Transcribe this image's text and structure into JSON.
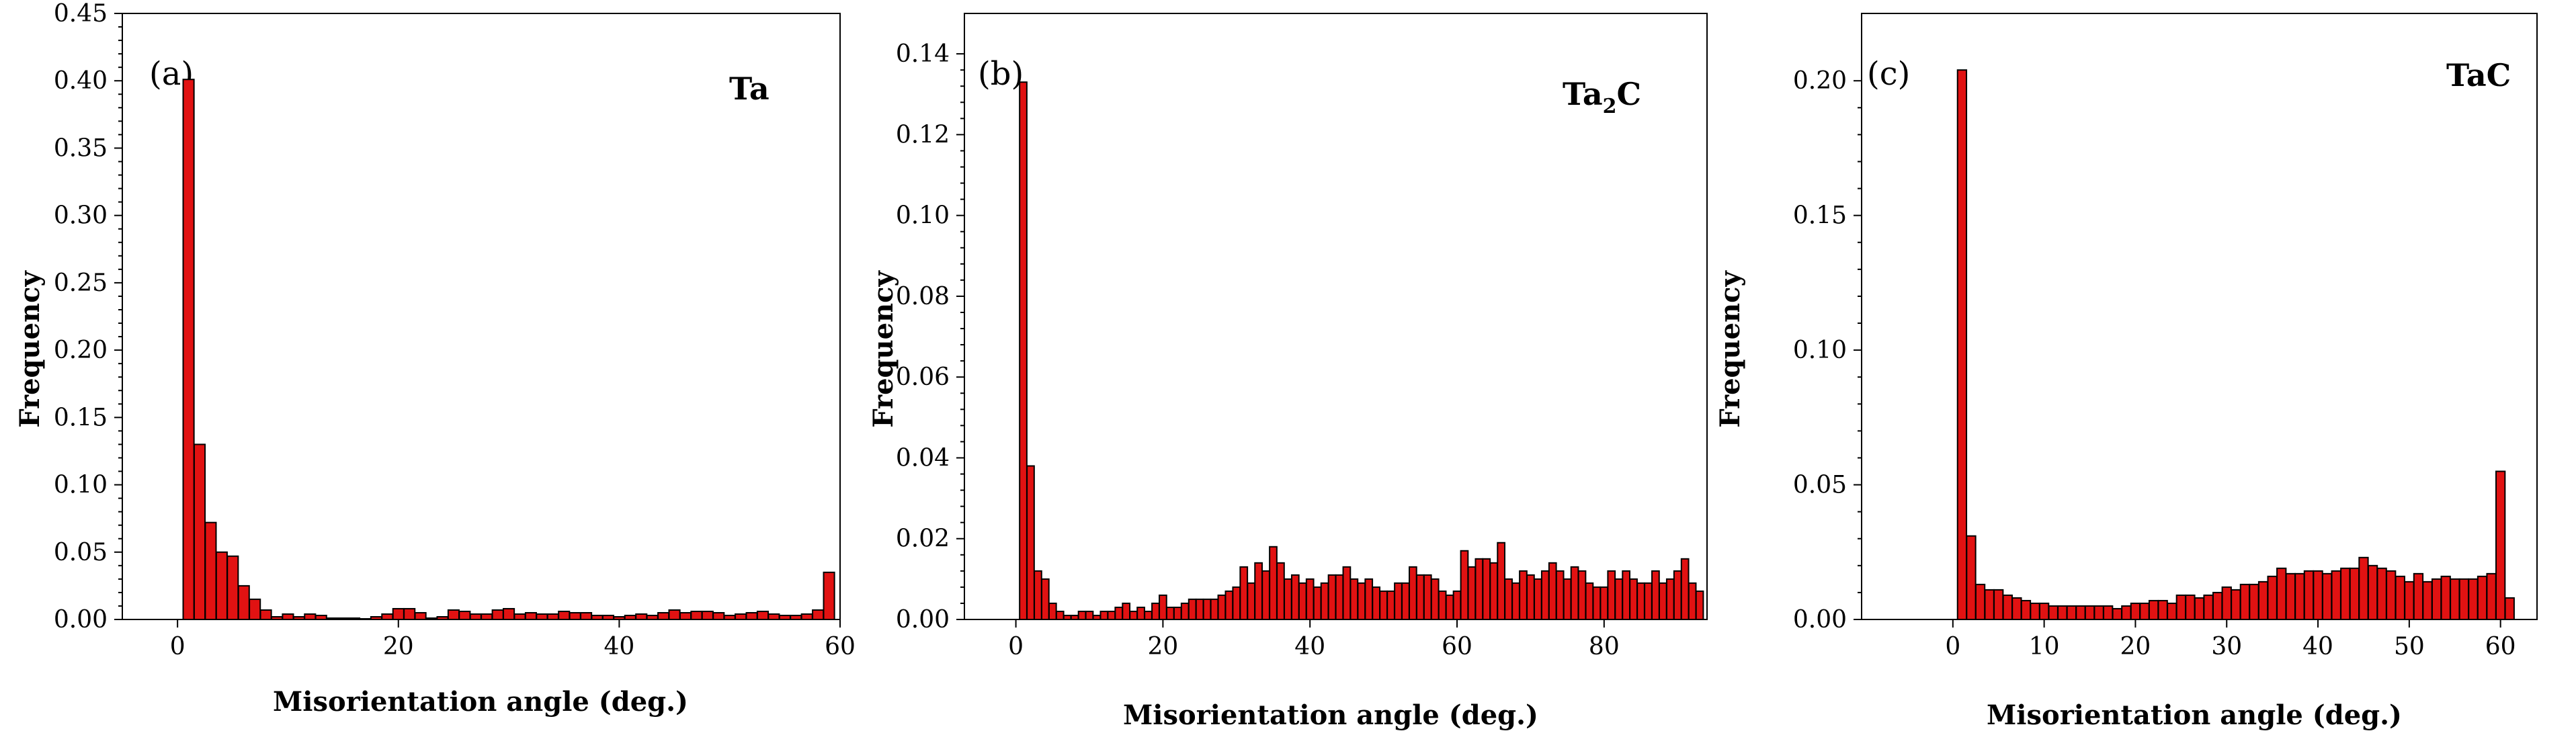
{
  "colors": {
    "bar_fill": "#e11212",
    "bar_edge": "#000000",
    "axis": "#000000"
  },
  "chart_data": [
    {
      "type": "bar",
      "panel_label": "(a)",
      "phase": {
        "main": "Ta",
        "sub": ""
      },
      "xlabel": "Misorientation angle (deg.)",
      "ylabel": "Frequency",
      "xlim": [
        -5,
        60
      ],
      "ylim": [
        0,
        0.45
      ],
      "bin_width": 1,
      "x_ticks": [
        0,
        20,
        40,
        60
      ],
      "y_ticks": [
        0.0,
        0.05,
        0.1,
        0.15,
        0.2,
        0.25,
        0.3,
        0.35,
        0.4,
        0.45
      ],
      "x_tick_labels": [
        "0",
        "20",
        "40",
        "60"
      ],
      "y_tick_labels": [
        "0.00",
        "0.05",
        "0.10",
        "0.15",
        "0.20",
        "0.25",
        "0.30",
        "0.35",
        "0.40",
        "0.45"
      ],
      "x": [
        1,
        2,
        3,
        4,
        5,
        6,
        7,
        8,
        9,
        10,
        11,
        12,
        13,
        14,
        15,
        16,
        17,
        18,
        19,
        20,
        21,
        22,
        23,
        24,
        25,
        26,
        27,
        28,
        29,
        30,
        31,
        32,
        33,
        34,
        35,
        36,
        37,
        38,
        39,
        40,
        41,
        42,
        43,
        44,
        45,
        46,
        47,
        48,
        49,
        50,
        51,
        52,
        53,
        54,
        55,
        56,
        57,
        58,
        59
      ],
      "values": [
        0.401,
        0.13,
        0.072,
        0.05,
        0.047,
        0.025,
        0.015,
        0.007,
        0.002,
        0.004,
        0.002,
        0.004,
        0.003,
        0.001,
        0.001,
        0.001,
        0.0005,
        0.002,
        0.004,
        0.008,
        0.008,
        0.005,
        0.001,
        0.002,
        0.007,
        0.006,
        0.004,
        0.004,
        0.007,
        0.008,
        0.004,
        0.005,
        0.004,
        0.004,
        0.006,
        0.005,
        0.005,
        0.003,
        0.003,
        0.002,
        0.003,
        0.004,
        0.003,
        0.005,
        0.007,
        0.005,
        0.006,
        0.006,
        0.005,
        0.003,
        0.004,
        0.005,
        0.006,
        0.004,
        0.003,
        0.003,
        0.004,
        0.007,
        0.035
      ]
    },
    {
      "type": "bar",
      "panel_label": "(b)",
      "phase": {
        "main": "Ta",
        "sub": "2",
        "main2": "C"
      },
      "xlabel": "Misorientation angle (deg.)",
      "ylabel": "Frequency",
      "xlim": [
        -7,
        94
      ],
      "ylim": [
        0,
        0.15
      ],
      "bin_width": 1,
      "x_ticks": [
        0,
        20,
        40,
        60,
        80
      ],
      "y_ticks": [
        0.0,
        0.02,
        0.04,
        0.06,
        0.08,
        0.1,
        0.12,
        0.14
      ],
      "x_tick_labels": [
        "0",
        "20",
        "40",
        "60",
        "80"
      ],
      "y_tick_labels": [
        "0.00",
        "0.02",
        "0.04",
        "0.06",
        "0.08",
        "0.10",
        "0.12",
        "0.14"
      ],
      "x": [
        1,
        2,
        3,
        4,
        5,
        6,
        7,
        8,
        9,
        10,
        11,
        12,
        13,
        14,
        15,
        16,
        17,
        18,
        19,
        20,
        21,
        22,
        23,
        24,
        25,
        26,
        27,
        28,
        29,
        30,
        31,
        32,
        33,
        34,
        35,
        36,
        37,
        38,
        39,
        40,
        41,
        42,
        43,
        44,
        45,
        46,
        47,
        48,
        49,
        50,
        51,
        52,
        53,
        54,
        55,
        56,
        57,
        58,
        59,
        60,
        61,
        62,
        63,
        64,
        65,
        66,
        67,
        68,
        69,
        70,
        71,
        72,
        73,
        74,
        75,
        76,
        77,
        78,
        79,
        80,
        81,
        82,
        83,
        84,
        85,
        86,
        87,
        88,
        89,
        90,
        91,
        92,
        93
      ],
      "values": [
        0.133,
        0.038,
        0.012,
        0.01,
        0.004,
        0.002,
        0.001,
        0.001,
        0.002,
        0.002,
        0.001,
        0.002,
        0.002,
        0.003,
        0.004,
        0.002,
        0.003,
        0.002,
        0.004,
        0.006,
        0.003,
        0.003,
        0.004,
        0.005,
        0.005,
        0.005,
        0.005,
        0.006,
        0.007,
        0.008,
        0.013,
        0.009,
        0.014,
        0.012,
        0.018,
        0.014,
        0.01,
        0.011,
        0.009,
        0.01,
        0.008,
        0.009,
        0.011,
        0.011,
        0.013,
        0.01,
        0.009,
        0.01,
        0.008,
        0.007,
        0.007,
        0.009,
        0.009,
        0.013,
        0.011,
        0.011,
        0.01,
        0.007,
        0.006,
        0.007,
        0.017,
        0.013,
        0.015,
        0.015,
        0.014,
        0.019,
        0.01,
        0.009,
        0.012,
        0.011,
        0.01,
        0.012,
        0.014,
        0.012,
        0.01,
        0.013,
        0.012,
        0.009,
        0.008,
        0.008,
        0.012,
        0.01,
        0.012,
        0.01,
        0.009,
        0.009,
        0.012,
        0.009,
        0.01,
        0.012,
        0.015,
        0.009,
        0.007
      ]
    },
    {
      "type": "bar",
      "panel_label": "(c)",
      "phase": {
        "main": "TaC",
        "sub": ""
      },
      "xlabel": "Misorientation angle (deg.)",
      "ylabel": "Frequency",
      "xlim": [
        -10,
        64
      ],
      "ylim": [
        0,
        0.225
      ],
      "bin_width": 1,
      "x_ticks": [
        0,
        10,
        20,
        30,
        40,
        50,
        60
      ],
      "y_ticks": [
        0.0,
        0.05,
        0.1,
        0.15,
        0.2
      ],
      "x_tick_labels": [
        "0",
        "10",
        "20",
        "30",
        "40",
        "50",
        "60"
      ],
      "y_tick_labels": [
        "0.00",
        "0.05",
        "0.10",
        "0.15",
        "0.20"
      ],
      "x": [
        1,
        2,
        3,
        4,
        5,
        6,
        7,
        8,
        9,
        10,
        11,
        12,
        13,
        14,
        15,
        16,
        17,
        18,
        19,
        20,
        21,
        22,
        23,
        24,
        25,
        26,
        27,
        28,
        29,
        30,
        31,
        32,
        33,
        34,
        35,
        36,
        37,
        38,
        39,
        40,
        41,
        42,
        43,
        44,
        45,
        46,
        47,
        48,
        49,
        50,
        51,
        52,
        53,
        54,
        55,
        56,
        57,
        58,
        59,
        60,
        61
      ],
      "values": [
        0.204,
        0.031,
        0.013,
        0.011,
        0.011,
        0.009,
        0.008,
        0.007,
        0.006,
        0.006,
        0.005,
        0.005,
        0.005,
        0.005,
        0.005,
        0.005,
        0.005,
        0.004,
        0.005,
        0.006,
        0.006,
        0.007,
        0.007,
        0.006,
        0.009,
        0.009,
        0.008,
        0.009,
        0.01,
        0.012,
        0.011,
        0.013,
        0.013,
        0.014,
        0.016,
        0.019,
        0.017,
        0.017,
        0.018,
        0.018,
        0.017,
        0.018,
        0.019,
        0.019,
        0.023,
        0.02,
        0.019,
        0.018,
        0.016,
        0.014,
        0.017,
        0.014,
        0.015,
        0.016,
        0.015,
        0.015,
        0.015,
        0.016,
        0.017,
        0.055,
        0.008
      ]
    }
  ]
}
